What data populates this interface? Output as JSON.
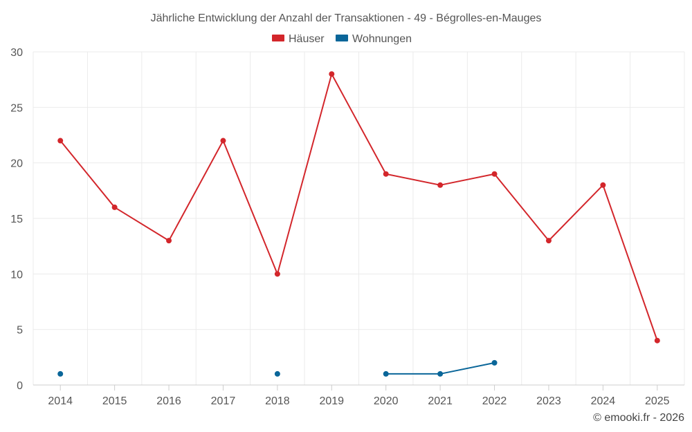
{
  "chart_data": {
    "type": "line",
    "title": "Jährliche Entwicklung der Anzahl der Transaktionen - 49 - Bégrolles-en-Mauges",
    "categories": [
      "2014",
      "2015",
      "2016",
      "2017",
      "2018",
      "2019",
      "2020",
      "2021",
      "2022",
      "2023",
      "2024",
      "2025"
    ],
    "ylim": [
      0,
      30
    ],
    "yticks": [
      0,
      5,
      10,
      15,
      20,
      25,
      30
    ],
    "grid": true,
    "legend_position": "top-center",
    "series": [
      {
        "name": "Häuser",
        "color": "#d3262b",
        "values": [
          22,
          16,
          13,
          22,
          10,
          28,
          19,
          18,
          19,
          13,
          18,
          4
        ]
      },
      {
        "name": "Wohnungen",
        "color": "#0a6699",
        "values": [
          1,
          null,
          null,
          null,
          1,
          null,
          1,
          1,
          2,
          null,
          null,
          null
        ]
      }
    ],
    "credit": "© emooki.fr - 2026"
  }
}
